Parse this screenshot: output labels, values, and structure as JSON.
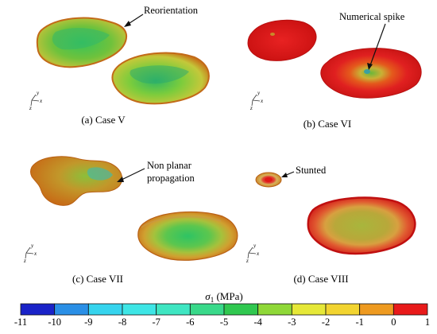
{
  "panels": [
    {
      "id": "a",
      "caption": "(a) Case V",
      "annotation": "Reorientation"
    },
    {
      "id": "b",
      "caption": "(b) Case VI",
      "annotation": "Numerical spike"
    },
    {
      "id": "c",
      "caption": "(c) Case VII",
      "annotation_line1": "Non planar",
      "annotation_line2": "propagation"
    },
    {
      "id": "d",
      "caption": "(d) Case VIII",
      "annotation": "Stunted"
    }
  ],
  "axes_labels": {
    "x": "x",
    "y": "y",
    "z": "z"
  },
  "colorbar": {
    "label_symbol": "σ",
    "label_subscript": "1",
    "label_unit": " (MPa)",
    "ticks": [
      "-11",
      "-10",
      "-9",
      "-8",
      "-7",
      "-6",
      "-5",
      "-4",
      "-3",
      "-2",
      "-1",
      "0",
      "1"
    ],
    "colors": [
      "#1a23c8",
      "#2a8fe6",
      "#36d4ee",
      "#3ee6e6",
      "#3fe6c2",
      "#39d98a",
      "#30c850",
      "#8fd838",
      "#e6e838",
      "#f2d430",
      "#ee9a20",
      "#e81a1a"
    ]
  },
  "colors": {
    "red_surface": "#e01818",
    "orange_surface": "#d9821e",
    "green_surface": "#4cb84a",
    "yellow_surface": "#b8c840"
  }
}
